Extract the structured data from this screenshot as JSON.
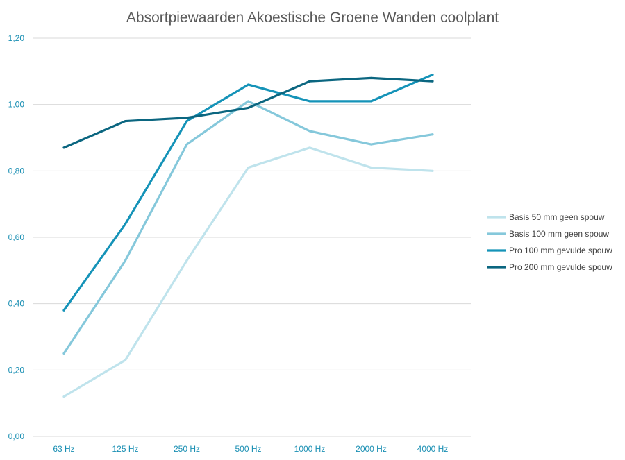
{
  "chart_data": {
    "type": "line",
    "title": "Absortpiewaarden Akoestische Groene Wanden coolplant",
    "xlabel": "",
    "ylabel": "",
    "categories": [
      "63 Hz",
      "125 Hz",
      "250 Hz",
      "500 Hz",
      "1000 Hz",
      "2000 Hz",
      "4000 Hz"
    ],
    "ylim": [
      0,
      1.2
    ],
    "yticks": [
      "0,00",
      "0,20",
      "0,40",
      "0,60",
      "0,80",
      "1,00",
      "1,20"
    ],
    "grid": true,
    "legend_position": "right",
    "series": [
      {
        "name": "Basis 50 mm geen spouw",
        "color": "#bfe3ec",
        "values": [
          0.12,
          0.23,
          0.53,
          0.81,
          0.87,
          0.81,
          0.8
        ]
      },
      {
        "name": "Basis 100 mm geen spouw",
        "color": "#85c8db",
        "values": [
          0.25,
          0.53,
          0.88,
          1.01,
          0.92,
          0.88,
          0.91
        ]
      },
      {
        "name": "Pro 100 mm gevulde spouw",
        "color": "#1593b8",
        "values": [
          0.38,
          0.64,
          0.95,
          1.06,
          1.01,
          1.01,
          1.09
        ]
      },
      {
        "name": "Pro 200 mm gevulde spouw",
        "color": "#0b6680",
        "values": [
          0.87,
          0.95,
          0.96,
          0.99,
          1.07,
          1.08,
          1.07
        ]
      }
    ]
  }
}
